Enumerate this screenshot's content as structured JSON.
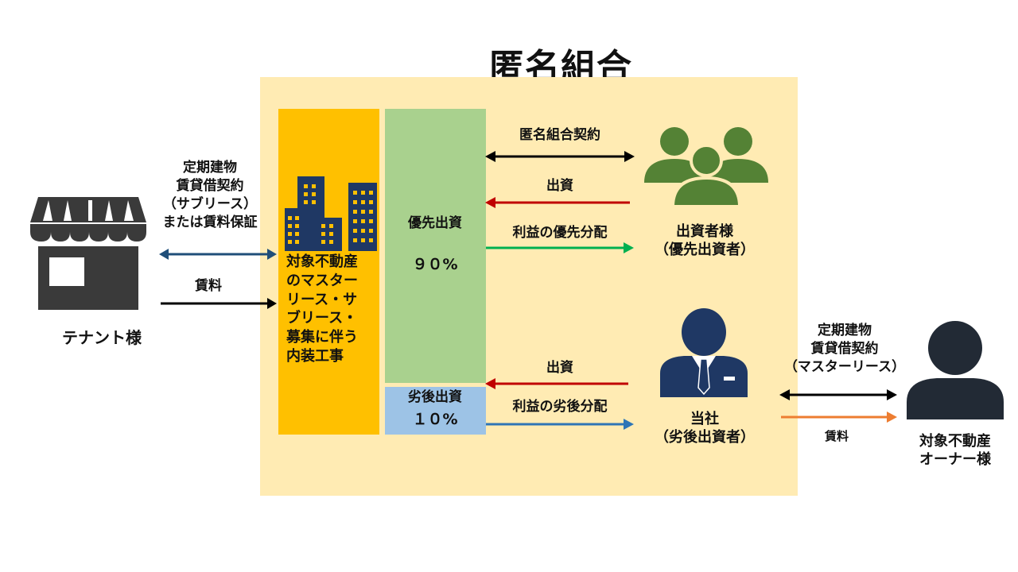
{
  "title": "匿名組合",
  "colors": {
    "box_bg": "#FFEBB3",
    "building_block": "#FFC000",
    "priority_block": "#A9D18E",
    "subordinate_block": "#9DC3E6",
    "investors_icon": "#548235",
    "navy": "#1F3864",
    "dark_person": "#222A35",
    "arrow_black": "#000000",
    "arrow_red": "#C00000",
    "arrow_green": "#00B050",
    "arrow_blue": "#2E75B6",
    "arrow_navy": "#1F4E79",
    "arrow_orange": "#ED7D31"
  },
  "tenant": {
    "name": "テナント様",
    "icon": "storefront-icon",
    "contract_lines": [
      "定期建物",
      "賃貸借契約",
      "（サブリース）",
      "または賃料保証"
    ],
    "rent_label": "賃料"
  },
  "master_lease_block": {
    "icon": "office-buildings-icon",
    "lines": [
      "対象不動産",
      "のマスター",
      "リース・サ",
      "ブリース・",
      "募集に伴う",
      "内装工事"
    ]
  },
  "priority_investment": {
    "label": "優先出資",
    "percent": "９０%"
  },
  "subordinate_investment": {
    "label": "劣後出資",
    "percent": "１０%"
  },
  "arrows": {
    "tk_contract": "匿名組合契約",
    "investment_priority": "出資",
    "priority_distribution": "利益の優先分配",
    "investment_company": "出資",
    "subordinate_distribution": "利益の劣後分配"
  },
  "investors": {
    "icon": "investors-group-icon",
    "lines": [
      "出資者様",
      "（優先出資者）"
    ]
  },
  "company": {
    "icon": "businessman-icon",
    "lines": [
      "当社",
      "（劣後出資者）"
    ]
  },
  "owner": {
    "icon": "person-icon",
    "contract_lines": [
      "定期建物",
      "賃貸借契約",
      "（マスターリース）"
    ],
    "rent_label": "賃料",
    "name_lines": [
      "対象不動産",
      "オーナー様"
    ]
  }
}
